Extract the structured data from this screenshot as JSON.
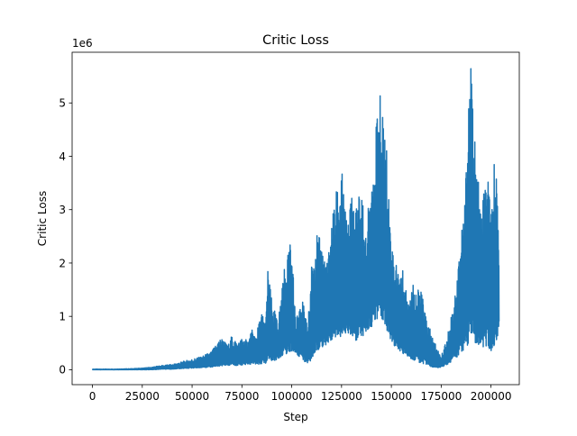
{
  "chart_data": {
    "type": "line",
    "title": "Critic Loss",
    "xlabel": "Step",
    "ylabel": "Critic Loss",
    "y_scale_label": "1e6",
    "y_multiplier": 1000000,
    "xlim": [
      -10200,
      214200
    ],
    "ylim": [
      -0.28,
      5.95
    ],
    "x_ticks": [
      0,
      25000,
      50000,
      75000,
      100000,
      125000,
      150000,
      175000,
      200000
    ],
    "y_ticks": [
      0,
      1,
      2,
      3,
      4,
      5
    ],
    "grid": false,
    "series_color": "#1f77b4",
    "series": [
      {
        "x": [
          0,
          10000,
          20000,
          25000,
          30000,
          35000,
          40000,
          45000,
          50000,
          55000,
          60000,
          63000,
          65000,
          68000,
          70000,
          73000,
          75000,
          78000,
          80000,
          82000,
          85000,
          87000,
          88000,
          90000,
          93000,
          95000,
          98000,
          100000,
          102000,
          105000,
          108000,
          110000,
          112000,
          115000,
          118000,
          120000,
          123000,
          125000,
          128000,
          130000,
          132000,
          135000,
          137000,
          140000,
          142000,
          144000,
          145000,
          147000,
          150000,
          153000,
          155000,
          158000,
          160000,
          163000,
          165000,
          168000,
          170000,
          173000,
          175000,
          178000,
          180000,
          182000,
          185000,
          187000,
          189000,
          190000,
          192000,
          195000,
          197000,
          199000,
          200000,
          202000,
          204000
        ],
        "upper": [
          0.01,
          0.01,
          0.02,
          0.03,
          0.05,
          0.08,
          0.1,
          0.15,
          0.2,
          0.25,
          0.35,
          0.55,
          0.6,
          0.45,
          0.65,
          0.5,
          0.6,
          0.55,
          0.75,
          0.65,
          1.1,
          0.9,
          1.9,
          1.3,
          0.9,
          1.5,
          2.4,
          2.3,
          0.9,
          1.4,
          0.8,
          2.0,
          2.6,
          2.4,
          2.0,
          2.8,
          3.5,
          3.8,
          2.6,
          3.5,
          3.0,
          3.6,
          2.4,
          3.8,
          4.4,
          5.3,
          4.9,
          4.6,
          2.4,
          1.9,
          2.0,
          1.4,
          1.7,
          1.5,
          1.5,
          0.9,
          0.7,
          0.4,
          0.25,
          0.6,
          1.0,
          1.5,
          2.6,
          3.3,
          5.6,
          5.7,
          4.3,
          2.9,
          3.6,
          3.6,
          2.8,
          4.2,
          2.7
        ],
        "lower": [
          0.0,
          0.0,
          0.0,
          0.0,
          0.0,
          0.01,
          0.01,
          0.02,
          0.03,
          0.04,
          0.05,
          0.06,
          0.07,
          0.08,
          0.08,
          0.08,
          0.08,
          0.09,
          0.1,
          0.1,
          0.1,
          0.12,
          0.2,
          0.15,
          0.2,
          0.25,
          0.3,
          0.35,
          0.3,
          0.2,
          0.1,
          0.2,
          0.35,
          0.4,
          0.5,
          0.55,
          0.6,
          0.6,
          0.7,
          0.6,
          0.55,
          0.6,
          0.7,
          0.8,
          0.9,
          1.0,
          0.9,
          0.8,
          0.5,
          0.4,
          0.3,
          0.25,
          0.2,
          0.15,
          0.12,
          0.1,
          0.05,
          0.03,
          0.05,
          0.1,
          0.15,
          0.2,
          0.3,
          0.4,
          0.5,
          0.6,
          0.5,
          0.45,
          0.4,
          0.4,
          0.35,
          0.45,
          0.75
        ]
      }
    ]
  }
}
